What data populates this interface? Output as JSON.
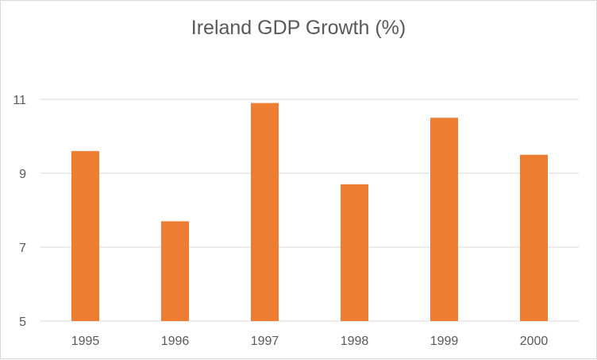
{
  "chart_data": {
    "type": "bar",
    "title": "Ireland GDP Growth (%)",
    "categories": [
      "1995",
      "1996",
      "1997",
      "1998",
      "1999",
      "2000"
    ],
    "values": [
      9.6,
      7.7,
      10.9,
      8.7,
      10.5,
      9.5
    ],
    "xlabel": "",
    "ylabel": "",
    "ylim": [
      5,
      11
    ],
    "yticks": [
      5,
      7,
      9,
      11
    ],
    "grid": true,
    "legend": "none",
    "bar_color": "#ed7d31"
  }
}
